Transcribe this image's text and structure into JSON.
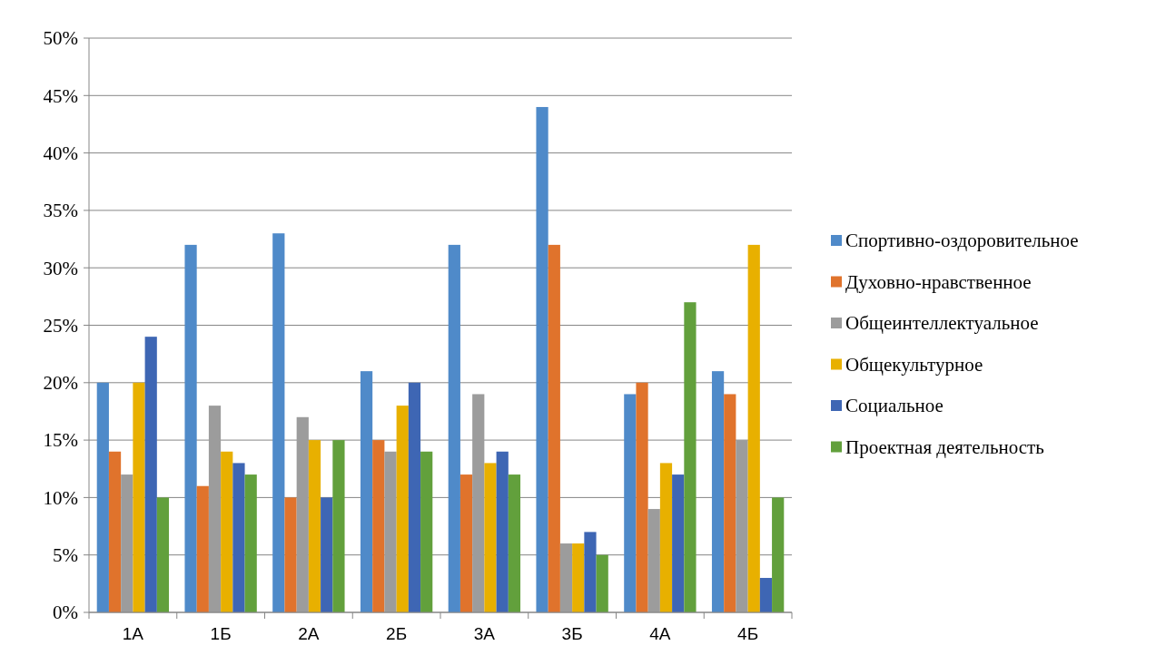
{
  "chart_data": {
    "type": "bar",
    "categories": [
      "1А",
      "1Б",
      "2А",
      "2Б",
      "3А",
      "3Б",
      "4А",
      "4Б"
    ],
    "series": [
      {
        "name": "Спортивно-оздоровительное",
        "color": "#4f8ac9",
        "values": [
          20,
          32,
          33,
          21,
          32,
          44,
          19,
          21
        ]
      },
      {
        "name": "Духовно-нравственное",
        "color": "#e0732c",
        "values": [
          14,
          11,
          10,
          15,
          12,
          32,
          20,
          19
        ]
      },
      {
        "name": "Общеинтеллектуальное",
        "color": "#9c9c9c",
        "values": [
          12,
          18,
          17,
          14,
          19,
          6,
          9,
          15
        ]
      },
      {
        "name": "Общекультурное",
        "color": "#e8b000",
        "values": [
          20,
          14,
          15,
          18,
          13,
          6,
          13,
          32
        ]
      },
      {
        "name": "Социальное",
        "color": "#3e66b4",
        "values": [
          24,
          13,
          10,
          20,
          14,
          7,
          12,
          3
        ]
      },
      {
        "name": "Проектная деятельность",
        "color": "#62a03c",
        "values": [
          10,
          12,
          15,
          14,
          12,
          5,
          27,
          10
        ]
      }
    ],
    "ylim": [
      0,
      50
    ],
    "yticks": [
      {
        "value": 0,
        "label": "0%"
      },
      {
        "value": 5,
        "label": "5%"
      },
      {
        "value": 10,
        "label": "10%"
      },
      {
        "value": 15,
        "label": "15%"
      },
      {
        "value": 20,
        "label": "20%"
      },
      {
        "value": 25,
        "label": "25%"
      },
      {
        "value": 30,
        "label": "30%"
      },
      {
        "value": 35,
        "label": "35%"
      },
      {
        "value": 40,
        "label": "40%"
      },
      {
        "value": 45,
        "label": "45%"
      },
      {
        "value": 50,
        "label": "50%"
      }
    ],
    "grid": "y",
    "legend": "right"
  }
}
